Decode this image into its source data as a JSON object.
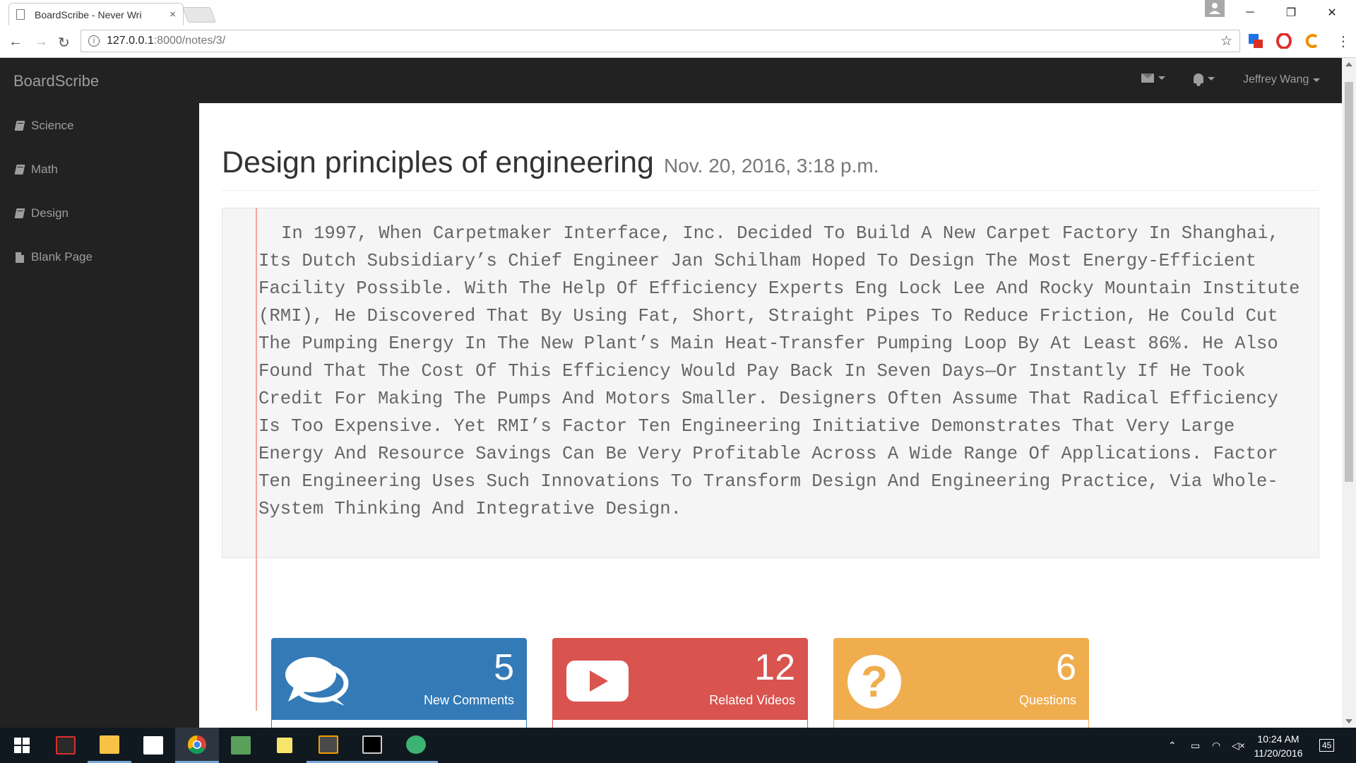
{
  "browser": {
    "tab_title": "BoardScribe - Never Wri",
    "tab_close": "×",
    "url_host": "127.0.0.1",
    "url_path": ":8000/notes/3/",
    "win_min": "─",
    "win_restore": "❐",
    "win_close": "✕",
    "back": "←",
    "forward": "→",
    "reload": "↻",
    "star": "☆",
    "info": "i",
    "menu": "⋮"
  },
  "app": {
    "brand": "BoardScribe",
    "user_name": "Jeffrey Wang"
  },
  "sidebar": {
    "items": [
      {
        "label": "Science",
        "icon": "book-icon"
      },
      {
        "label": "Math",
        "icon": "book-icon"
      },
      {
        "label": "Design",
        "icon": "book-icon"
      },
      {
        "label": "Blank Page",
        "icon": "file-icon"
      }
    ]
  },
  "note": {
    "title": "Design principles of engineering",
    "date": "Nov. 20, 2016, 3:18 p.m.",
    "body": "In 1997, When Carpetmaker Interface, Inc. Decided To Build A New Carpet Factory In Shanghai, Its Dutch Subsidiary’s Chief Engineer Jan Schilham Hoped To Design The Most Energy-Efficient Facility Possible. With The Help Of Efficiency Experts Eng Lock Lee And Rocky Mountain Institute (RMI), He Discovered That By Using Fat, Short, Straight Pipes To Reduce Friction, He Could Cut The Pumping Energy In The New Plant’s Main Heat-Transfer Pumping Loop By At Least 86%. He Also Found That The Cost Of This Efficiency Would Pay Back In Seven Days—Or Instantly If He Took Credit For Making The Pumps And Motors Smaller. Designers Often Assume That Radical Efficiency Is Too Expensive. Yet RMI’s Factor Ten Engineering Initiative Demonstrates That Very Large Energy And Resource Savings Can Be Very Profitable Across A Wide Range Of Applications. Factor Ten Engineering Uses Such Innovations To Transform Design And Engineering Practice, Via Whole-System Thinking And Integrative Design."
  },
  "panels": {
    "comments": {
      "count": "5",
      "label": "New Comments"
    },
    "videos": {
      "count": "12",
      "label": "Related Videos"
    },
    "questions": {
      "count": "6",
      "label": "Questions"
    }
  },
  "taskbar": {
    "time": "10:24 AM",
    "date": "11/20/2016",
    "notifications": "45"
  },
  "colors": {
    "navbar": "#222222",
    "panel_blue": "#337ab7",
    "panel_red": "#d9534f",
    "panel_yellow": "#f0ad4e"
  }
}
